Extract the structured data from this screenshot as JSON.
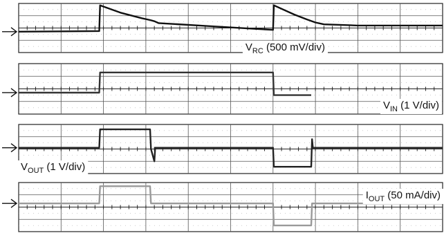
{
  "chart_data": {
    "type": "line",
    "divisions": {
      "x": 10,
      "y": 4
    },
    "x": [
      0,
      1.9,
      1.92,
      3.2,
      3.3,
      3.4,
      6.0,
      6.02,
      6.5,
      6.8,
      7.2,
      10
    ],
    "channels": [
      {
        "id": "vrc",
        "label": {
          "main": "V",
          "sub": "RC",
          "rest": " (500 mV/div)"
        },
        "color": "#111111",
        "ref_div": 1.7,
        "trace": [
          [
            0,
            1.7
          ],
          [
            1.9,
            1.75
          ],
          [
            1.92,
            3.85
          ],
          [
            2.4,
            3.25
          ],
          [
            2.9,
            2.8
          ],
          [
            3.1,
            2.65
          ],
          [
            3.2,
            2.55
          ],
          [
            3.3,
            2.4
          ],
          [
            4.5,
            2.15
          ],
          [
            5.5,
            1.95
          ],
          [
            6.0,
            1.85
          ],
          [
            6.02,
            3.85
          ],
          [
            6.5,
            3.1
          ],
          [
            6.8,
            2.7
          ],
          [
            7.0,
            2.45
          ],
          [
            7.2,
            2.3
          ],
          [
            8.0,
            2.2
          ],
          [
            10,
            2.2
          ]
        ]
      },
      {
        "id": "vin",
        "label": {
          "main": "V",
          "sub": "IN",
          "rest": " (1 V/div)"
        },
        "color": "#333333",
        "ref_div": 1.7,
        "trace": [
          [
            0,
            1.7
          ],
          [
            1.9,
            1.7
          ],
          [
            1.92,
            3.3
          ],
          [
            6.0,
            3.3
          ],
          [
            6.02,
            1.5
          ],
          [
            6.9,
            1.5
          ]
        ]
      },
      {
        "id": "vout",
        "label": {
          "main": "V",
          "sub": "OUT",
          "rest": " (1 V/div)"
        },
        "color": "#222222",
        "ref_div": 2.1,
        "trace": [
          [
            0,
            2.1
          ],
          [
            1.9,
            2.1
          ],
          [
            1.92,
            3.6
          ],
          [
            3.1,
            3.6
          ],
          [
            3.12,
            2.0
          ],
          [
            3.2,
            1.0
          ],
          [
            3.22,
            2.1
          ],
          [
            6.0,
            2.1
          ],
          [
            6.02,
            0.55
          ],
          [
            6.9,
            0.55
          ],
          [
            6.92,
            2.8
          ],
          [
            6.94,
            2.1
          ],
          [
            10,
            2.1
          ]
        ]
      },
      {
        "id": "iout",
        "label": {
          "main": "I",
          "sub": "OUT",
          "rest": " (50 mA/div)"
        },
        "color": "#999999",
        "ref_div": 2.3,
        "trace": [
          [
            0,
            2.3
          ],
          [
            1.9,
            2.3
          ],
          [
            1.92,
            3.7
          ],
          [
            3.1,
            3.7
          ],
          [
            3.12,
            2.3
          ],
          [
            6.0,
            2.3
          ],
          [
            6.02,
            0.5
          ],
          [
            6.9,
            0.5
          ],
          [
            6.92,
            2.3
          ],
          [
            10,
            2.3
          ]
        ]
      }
    ]
  }
}
